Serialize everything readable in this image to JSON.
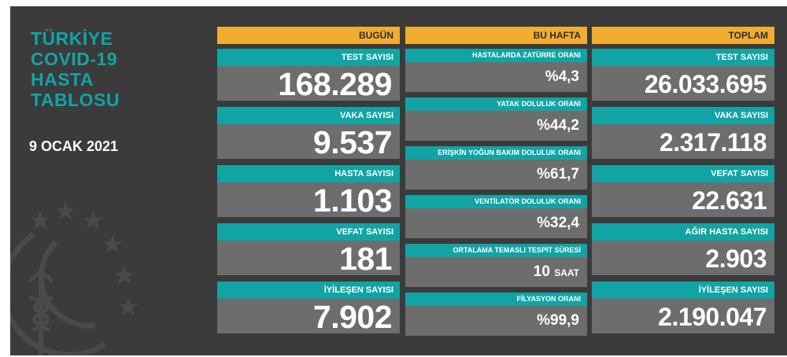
{
  "title_lines": [
    "TÜRKİYE",
    "COVID-19",
    "HASTA",
    "TABLOSU"
  ],
  "date": "9 OCAK 2021",
  "colors": {
    "panel": "#3b3b3b",
    "header": "#f2ad30",
    "label": "#12a4a4",
    "value": "#6d6d6d"
  },
  "today": {
    "header": "BUGÜN",
    "items": [
      {
        "label": "TEST SAYISI",
        "value": "168.289"
      },
      {
        "label": "VAKA SAYISI",
        "value": "9.537"
      },
      {
        "label": "HASTA SAYISI",
        "value": "1.103"
      },
      {
        "label": "VEFAT SAYISI",
        "value": "181"
      },
      {
        "label": "İYİLEŞEN SAYISI",
        "value": "7.902"
      }
    ]
  },
  "week": {
    "header": "BU HAFTA",
    "items": [
      {
        "label": "HASTALARDA ZATÜRRE ORANI",
        "value": "%4,3",
        "unit": ""
      },
      {
        "label": "YATAK DOLULUK ORANI",
        "value": "%44,2",
        "unit": ""
      },
      {
        "label": "ERİŞKİN YOĞUN BAKIM DOLULUK ORANI",
        "value": "%61,7",
        "unit": ""
      },
      {
        "label": "VENTİLATÖR DOLULUK ORANI",
        "value": "%32,4",
        "unit": ""
      },
      {
        "label": "ORTALAMA TEMASLI TESPİT SÜRESİ",
        "value": "10",
        "unit": "SAAT"
      },
      {
        "label": "FİLYASYON ORANI",
        "value": "%99,9",
        "unit": ""
      }
    ]
  },
  "total": {
    "header": "TOPLAM",
    "items": [
      {
        "label": "TEST SAYISI",
        "value": "26.033.695"
      },
      {
        "label": "VAKA SAYISI",
        "value": "2.317.118"
      },
      {
        "label": "VEFAT SAYISI",
        "value": "22.631"
      },
      {
        "label": "AĞIR HASTA SAYISI",
        "value": "2.903"
      },
      {
        "label": "İYİLEŞEN SAYISI",
        "value": "2.190.047"
      }
    ]
  },
  "icons": {
    "emblem": "health-ministry-emblem-icon"
  }
}
